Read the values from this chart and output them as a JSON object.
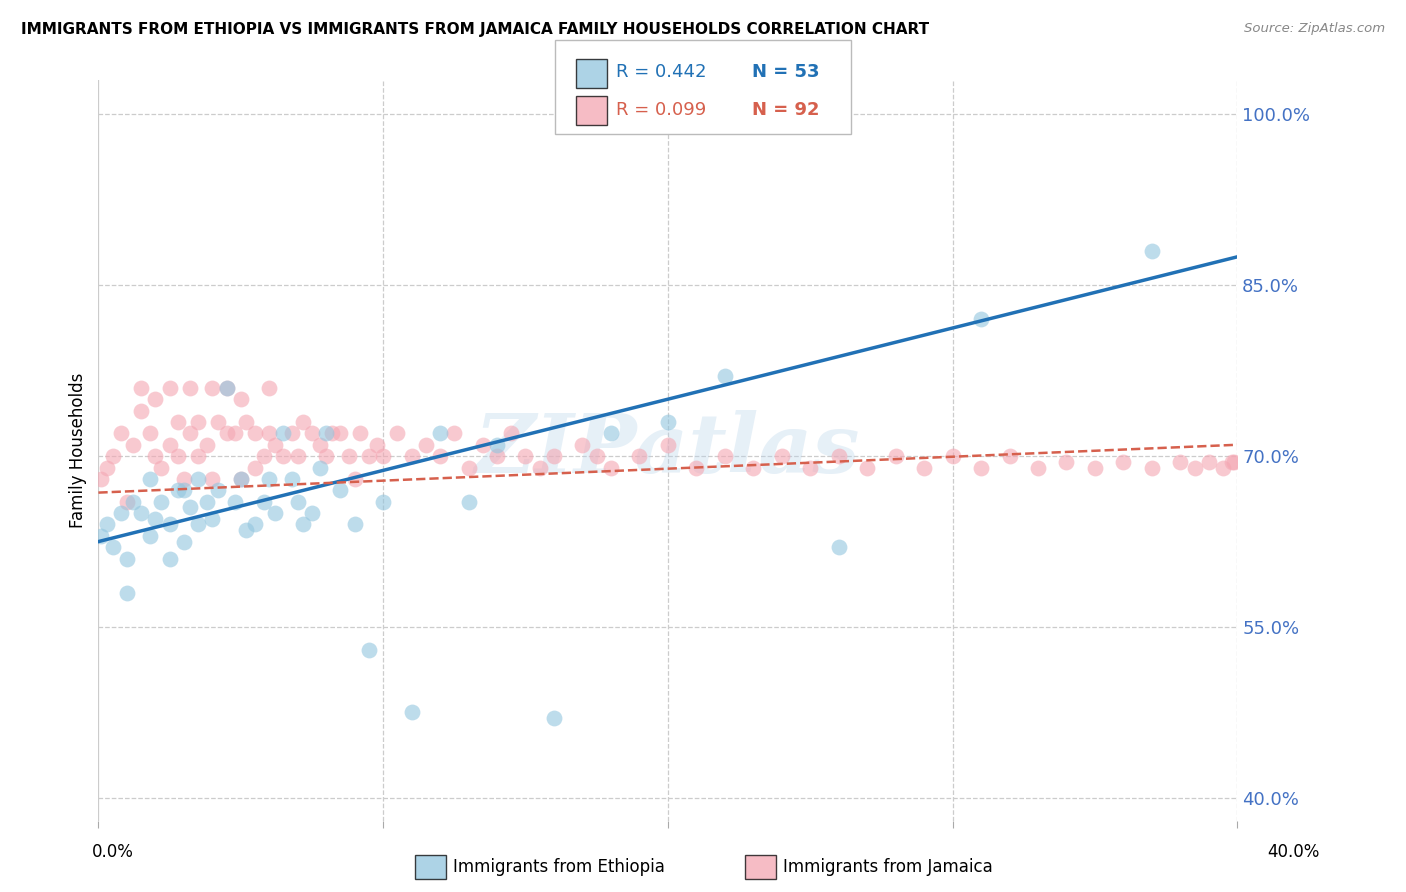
{
  "title": "IMMIGRANTS FROM ETHIOPIA VS IMMIGRANTS FROM JAMAICA FAMILY HOUSEHOLDS CORRELATION CHART",
  "source": "Source: ZipAtlas.com",
  "ylabel": "Family Households",
  "ytick_labels": [
    "100.0%",
    "85.0%",
    "70.0%",
    "55.0%",
    "40.0%"
  ],
  "ytick_values": [
    1.0,
    0.85,
    0.7,
    0.55,
    0.4
  ],
  "xlim": [
    0.0,
    0.4
  ],
  "ylim": [
    0.38,
    1.03
  ],
  "legend_r1": "R = 0.442",
  "legend_n1": "N = 53",
  "legend_r2": "R = 0.099",
  "legend_n2": "N = 92",
  "color_ethiopia": "#92c5de",
  "color_jamaica": "#f4a6b2",
  "color_ethiopia_line": "#2171b5",
  "color_jamaica_line": "#d6604d",
  "watermark": "ZIPatlas",
  "ethiopia_x": [
    0.001,
    0.003,
    0.005,
    0.008,
    0.01,
    0.01,
    0.012,
    0.015,
    0.018,
    0.018,
    0.02,
    0.022,
    0.025,
    0.025,
    0.028,
    0.03,
    0.03,
    0.032,
    0.035,
    0.035,
    0.038,
    0.04,
    0.042,
    0.045,
    0.048,
    0.05,
    0.052,
    0.055,
    0.058,
    0.06,
    0.062,
    0.065,
    0.068,
    0.07,
    0.072,
    0.075,
    0.078,
    0.08,
    0.085,
    0.09,
    0.095,
    0.1,
    0.11,
    0.12,
    0.13,
    0.14,
    0.16,
    0.18,
    0.2,
    0.22,
    0.26,
    0.31,
    0.37
  ],
  "ethiopia_y": [
    0.63,
    0.64,
    0.62,
    0.65,
    0.61,
    0.58,
    0.66,
    0.65,
    0.63,
    0.68,
    0.645,
    0.66,
    0.61,
    0.64,
    0.67,
    0.625,
    0.67,
    0.655,
    0.64,
    0.68,
    0.66,
    0.645,
    0.67,
    0.76,
    0.66,
    0.68,
    0.635,
    0.64,
    0.66,
    0.68,
    0.65,
    0.72,
    0.68,
    0.66,
    0.64,
    0.65,
    0.69,
    0.72,
    0.67,
    0.64,
    0.53,
    0.66,
    0.475,
    0.72,
    0.66,
    0.71,
    0.47,
    0.72,
    0.73,
    0.77,
    0.62,
    0.82,
    0.88
  ],
  "jamaica_x": [
    0.001,
    0.003,
    0.005,
    0.008,
    0.01,
    0.012,
    0.015,
    0.015,
    0.018,
    0.02,
    0.02,
    0.022,
    0.025,
    0.025,
    0.028,
    0.028,
    0.03,
    0.032,
    0.032,
    0.035,
    0.035,
    0.038,
    0.04,
    0.04,
    0.042,
    0.045,
    0.045,
    0.048,
    0.05,
    0.05,
    0.052,
    0.055,
    0.055,
    0.058,
    0.06,
    0.06,
    0.062,
    0.065,
    0.068,
    0.07,
    0.072,
    0.075,
    0.078,
    0.08,
    0.082,
    0.085,
    0.088,
    0.09,
    0.092,
    0.095,
    0.098,
    0.1,
    0.105,
    0.11,
    0.115,
    0.12,
    0.125,
    0.13,
    0.135,
    0.14,
    0.145,
    0.15,
    0.155,
    0.16,
    0.17,
    0.175,
    0.18,
    0.19,
    0.2,
    0.21,
    0.22,
    0.23,
    0.24,
    0.25,
    0.26,
    0.27,
    0.28,
    0.29,
    0.3,
    0.31,
    0.32,
    0.33,
    0.34,
    0.35,
    0.36,
    0.37,
    0.38,
    0.385,
    0.39,
    0.395,
    0.398,
    0.399
  ],
  "jamaica_y": [
    0.68,
    0.69,
    0.7,
    0.72,
    0.66,
    0.71,
    0.74,
    0.76,
    0.72,
    0.7,
    0.75,
    0.69,
    0.71,
    0.76,
    0.7,
    0.73,
    0.68,
    0.72,
    0.76,
    0.7,
    0.73,
    0.71,
    0.68,
    0.76,
    0.73,
    0.72,
    0.76,
    0.72,
    0.68,
    0.75,
    0.73,
    0.69,
    0.72,
    0.7,
    0.72,
    0.76,
    0.71,
    0.7,
    0.72,
    0.7,
    0.73,
    0.72,
    0.71,
    0.7,
    0.72,
    0.72,
    0.7,
    0.68,
    0.72,
    0.7,
    0.71,
    0.7,
    0.72,
    0.7,
    0.71,
    0.7,
    0.72,
    0.69,
    0.71,
    0.7,
    0.72,
    0.7,
    0.69,
    0.7,
    0.71,
    0.7,
    0.69,
    0.7,
    0.71,
    0.69,
    0.7,
    0.69,
    0.7,
    0.69,
    0.7,
    0.69,
    0.7,
    0.69,
    0.7,
    0.69,
    0.7,
    0.69,
    0.695,
    0.69,
    0.695,
    0.69,
    0.695,
    0.69,
    0.695,
    0.69,
    0.695,
    0.695
  ],
  "eth_line_x": [
    0.0,
    0.4
  ],
  "eth_line_y": [
    0.625,
    0.875
  ],
  "jam_line_x": [
    0.0,
    0.4
  ],
  "jam_line_y": [
    0.668,
    0.71
  ]
}
